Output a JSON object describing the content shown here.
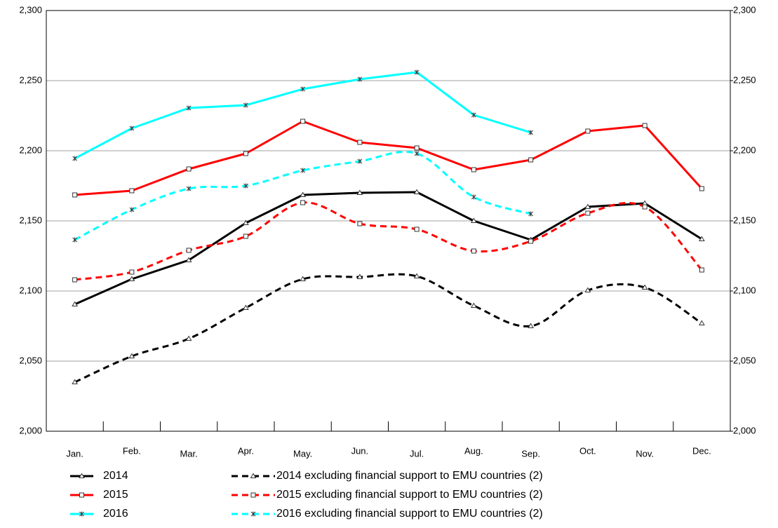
{
  "chart_data": {
    "type": "line",
    "categories": [
      "Jan.",
      "Feb.",
      "Mar.",
      "Apr.",
      "May.",
      "Jun.",
      "Jul.",
      "Aug.",
      "Sep.",
      "Oct.",
      "Nov.",
      "Dec."
    ],
    "ylim": [
      2000,
      2300
    ],
    "yticks": [
      {
        "value": 2000,
        "label": "2,000"
      },
      {
        "value": 2050,
        "label": "2,050"
      },
      {
        "value": 2100,
        "label": "2,100"
      },
      {
        "value": 2150,
        "label": "2,150"
      },
      {
        "value": 2200,
        "label": "2,200"
      },
      {
        "value": 2250,
        "label": "2,250"
      },
      {
        "value": 2300,
        "label": "2,300"
      }
    ],
    "y2lim": [
      2000,
      2300
    ],
    "y2ticks": [
      {
        "value": 2000,
        "label": "2,000"
      },
      {
        "value": 2050,
        "label": "2,050"
      },
      {
        "value": 2100,
        "label": "2,100"
      },
      {
        "value": 2150,
        "label": "2,150"
      },
      {
        "value": 2200,
        "label": "2,200"
      },
      {
        "value": 2250,
        "label": "2,250"
      },
      {
        "value": 2300,
        "label": "2,300"
      }
    ],
    "grid": true,
    "series": [
      {
        "name": "2014",
        "color": "#000000",
        "dash": false,
        "smooth": false,
        "marker": "triangle",
        "values": [
          2090.5,
          2108.5,
          2122,
          2148.5,
          2168.5,
          2170,
          2170.5,
          2150,
          2136.5,
          2160,
          2162.5,
          2137
        ]
      },
      {
        "name": "2015",
        "color": "#ff0000",
        "dash": false,
        "smooth": false,
        "marker": "square",
        "values": [
          2168.5,
          2171.5,
          2187,
          2198,
          2221,
          2206,
          2202,
          2186.5,
          2193.5,
          2214,
          2218,
          2173
        ]
      },
      {
        "name": "2016",
        "color": "#00ffff",
        "dash": false,
        "smooth": false,
        "marker": "star",
        "values": [
          2194.5,
          2216,
          2230.5,
          2232.5,
          2244,
          2251,
          2256,
          2225.5,
          2213,
          null,
          null,
          null
        ]
      },
      {
        "name": "2014 excluding financial support to EMU countries (2)",
        "color": "#000000",
        "dash": true,
        "smooth": true,
        "marker": "triangle",
        "values": [
          2035,
          2053.5,
          2066,
          2088,
          2108.5,
          2110,
          2110.5,
          2089.5,
          2075,
          2100.5,
          2102.5,
          2077
        ]
      },
      {
        "name": "2015 excluding financial support to EMU countries (2)",
        "color": "#ff0000",
        "dash": true,
        "smooth": true,
        "marker": "square",
        "values": [
          2108,
          2113.5,
          2129,
          2139,
          2163,
          2148,
          2144,
          2128.5,
          2135.5,
          2155.5,
          2160,
          2115
        ]
      },
      {
        "name": "2016 excluding financial support to EMU countries (2)",
        "color": "#00ffff",
        "dash": true,
        "smooth": true,
        "marker": "star",
        "values": [
          2136.5,
          2158,
          2173,
          2175,
          2186,
          2192.5,
          2198,
          2167,
          2155,
          null,
          null,
          null
        ]
      }
    ]
  }
}
